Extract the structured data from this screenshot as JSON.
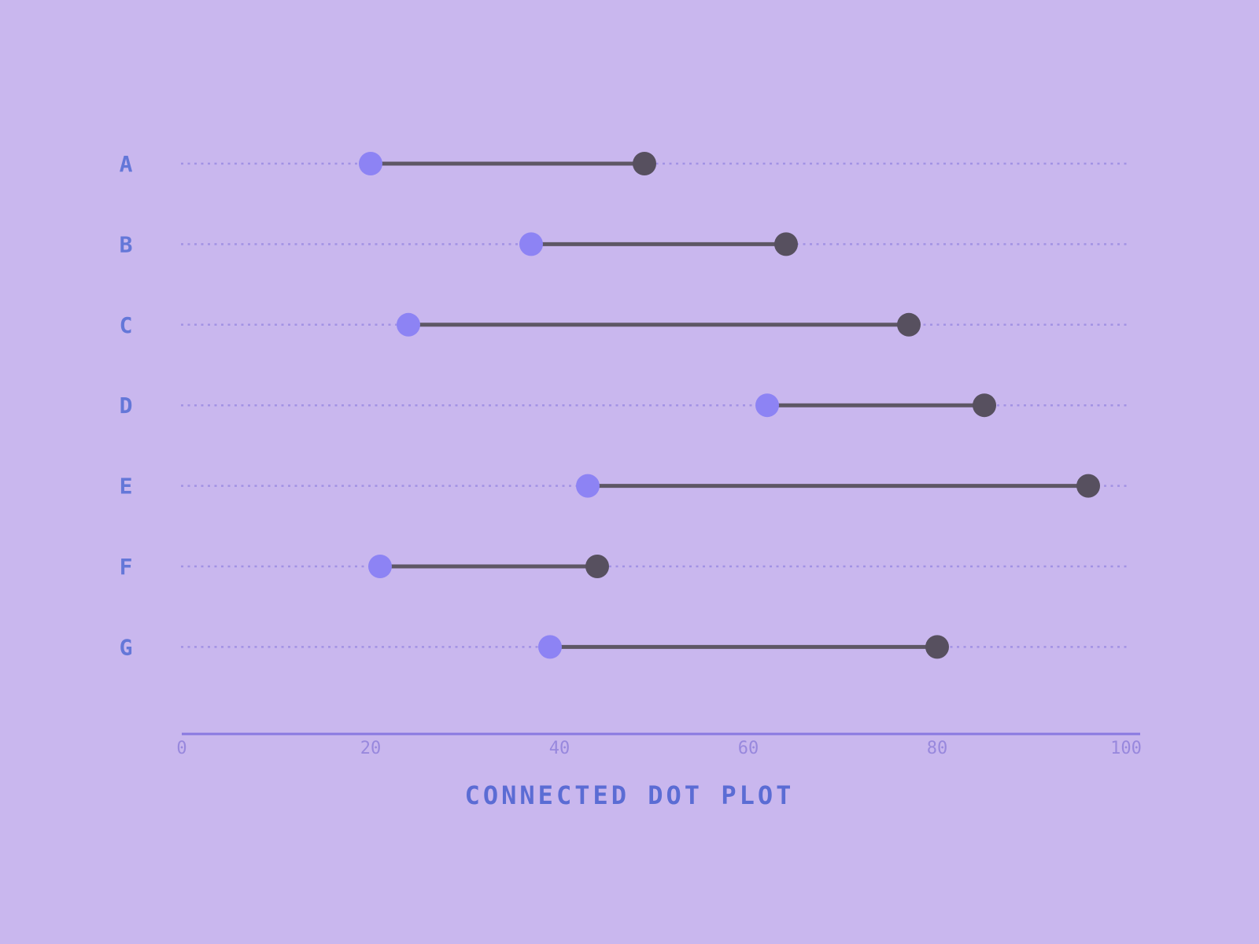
{
  "chart_data": {
    "type": "scatter",
    "variant": "connected dot plot (dumbbell)",
    "title": "CONNECTED DOT PLOT",
    "categories": [
      "A",
      "B",
      "C",
      "D",
      "E",
      "F",
      "G"
    ],
    "series": [
      {
        "name": "start-dot",
        "color": "#8d83f4",
        "values": [
          20,
          37,
          24,
          62,
          43,
          21,
          39
        ]
      },
      {
        "name": "end-dot",
        "color": "#57505f",
        "values": [
          49,
          64,
          77,
          85,
          96,
          44,
          80
        ]
      }
    ],
    "xlim": [
      0,
      100
    ],
    "x_ticks": [
      "0",
      "20",
      "40",
      "60",
      "80",
      "100"
    ],
    "x_tick_values": [
      0,
      20,
      40,
      60,
      80,
      100
    ],
    "legend": "none",
    "grid": "horizontal dashed row guide lines",
    "colors": {
      "background": "#c9b7ee",
      "start_dot": "#8d83f4",
      "end_dot": "#57505f",
      "connector": "#5e5765",
      "guide_dash": "#a292e4",
      "axis_line": "#8979e0",
      "tick_label": "#9888dd",
      "category_label": "#6477d8",
      "title": "#5b6cd4"
    }
  }
}
